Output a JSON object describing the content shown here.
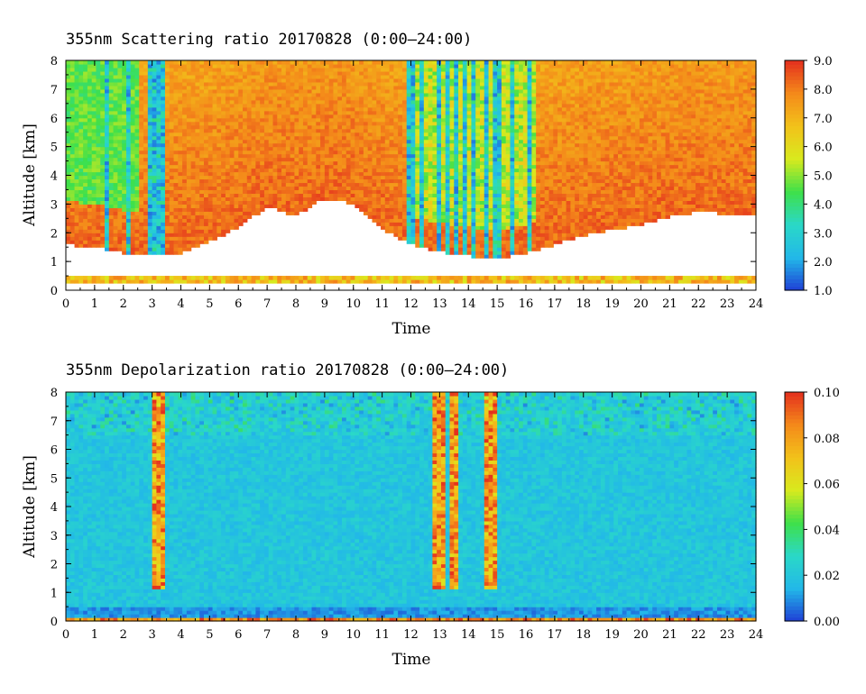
{
  "chart_data": [
    {
      "type": "heatmap",
      "title": "355nm Scattering ratio  20170828 (0:00–24:00)",
      "xlabel": "Time",
      "ylabel": "Altitude [km]",
      "xlim": [
        0,
        24
      ],
      "ylim": [
        0,
        8
      ],
      "x_ticks": [
        "0",
        "1",
        "2",
        "3",
        "4",
        "5",
        "6",
        "7",
        "8",
        "9",
        "10",
        "11",
        "12",
        "13",
        "14",
        "15",
        "16",
        "17",
        "18",
        "19",
        "20",
        "21",
        "22",
        "23",
        "24"
      ],
      "y_ticks": [
        "0",
        "1",
        "2",
        "3",
        "4",
        "5",
        "6",
        "7",
        "8"
      ],
      "colorbar": {
        "range": [
          1.0,
          9.0
        ],
        "ticks": [
          "1.0",
          "2.0",
          "3.0",
          "4.0",
          "5.0",
          "6.0",
          "7.0",
          "8.0",
          "9.0"
        ],
        "colors": [
          "#1f3fd6",
          "#22b8e8",
          "#2ad8c8",
          "#3ee04a",
          "#d8ea1e",
          "#f2c21a",
          "#f48a1a",
          "#e4301e"
        ]
      },
      "cloud_base_km": [
        {
          "t": 0.0,
          "z": 1.6
        },
        {
          "t": 1.0,
          "z": 1.5
        },
        {
          "t": 2.0,
          "z": 1.3
        },
        {
          "t": 3.0,
          "z": 1.25
        },
        {
          "t": 4.0,
          "z": 1.3
        },
        {
          "t": 5.0,
          "z": 1.7
        },
        {
          "t": 6.0,
          "z": 2.2
        },
        {
          "t": 7.0,
          "z": 2.9
        },
        {
          "t": 8.0,
          "z": 2.6
        },
        {
          "t": 9.0,
          "z": 3.2
        },
        {
          "t": 10.0,
          "z": 3.0
        },
        {
          "t": 11.0,
          "z": 2.1
        },
        {
          "t": 12.0,
          "z": 1.6
        },
        {
          "t": 13.0,
          "z": 1.35
        },
        {
          "t": 14.0,
          "z": 1.2
        },
        {
          "t": 15.0,
          "z": 1.1
        },
        {
          "t": 16.0,
          "z": 1.3
        },
        {
          "t": 17.0,
          "z": 1.6
        },
        {
          "t": 18.0,
          "z": 1.9
        },
        {
          "t": 19.0,
          "z": 2.1
        },
        {
          "t": 20.0,
          "z": 2.3
        },
        {
          "t": 21.0,
          "z": 2.55
        },
        {
          "t": 22.0,
          "z": 2.75
        },
        {
          "t": 23.0,
          "z": 2.65
        },
        {
          "t": 24.0,
          "z": 2.6
        }
      ],
      "low_value_streaks_time": [
        1.4,
        2.2,
        3.0,
        3.2,
        3.4,
        12.0,
        12.4,
        13.0,
        13.3,
        13.6,
        13.9,
        14.2,
        14.6,
        15.0,
        15.5,
        16.1
      ],
      "near_ground_layer_km": [
        0.25,
        0.45
      ]
    },
    {
      "type": "heatmap",
      "title": "355nm Depolarization ratio  20170828 (0:00–24:00)",
      "xlabel": "Time",
      "ylabel": "Altitude [km]",
      "xlim": [
        0,
        24
      ],
      "ylim": [
        0,
        8
      ],
      "x_ticks": [
        "0",
        "1",
        "2",
        "3",
        "4",
        "5",
        "6",
        "7",
        "8",
        "9",
        "10",
        "11",
        "12",
        "13",
        "14",
        "15",
        "16",
        "17",
        "18",
        "19",
        "20",
        "21",
        "22",
        "23",
        "24"
      ],
      "y_ticks": [
        "0",
        "1",
        "2",
        "3",
        "4",
        "5",
        "6",
        "7",
        "8"
      ],
      "colorbar": {
        "range": [
          0.0,
          0.1
        ],
        "ticks": [
          "0.00",
          "0.02",
          "0.04",
          "0.06",
          "0.08",
          "0.10"
        ],
        "colors": [
          "#1f3fd6",
          "#22b8e8",
          "#2ad8c8",
          "#3ee04a",
          "#d8ea1e",
          "#f2c21a",
          "#f48a1a",
          "#e4301e"
        ]
      },
      "high_value_columns_time": [
        3.2,
        13.0,
        13.5,
        14.8
      ],
      "background_value": 0.02
    }
  ]
}
